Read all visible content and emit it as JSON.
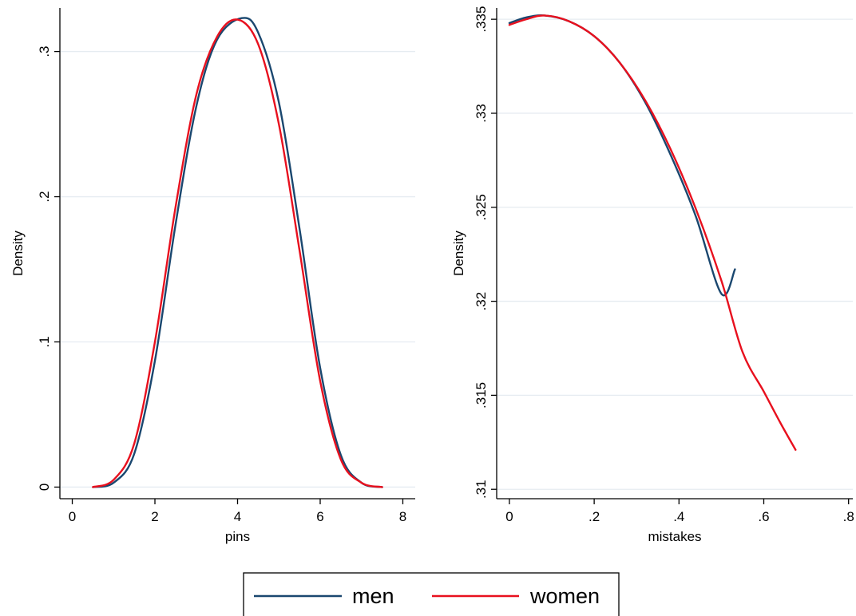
{
  "chart_data": [
    {
      "type": "line",
      "xlabel": "pins",
      "ylabel": "Density",
      "xlim": [
        -0.3,
        8.3
      ],
      "ylim": [
        -0.008,
        0.33
      ],
      "xticks": [
        0,
        2,
        4,
        6,
        8
      ],
      "xtick_labels": [
        "0",
        "2",
        "4",
        "6",
        "8"
      ],
      "yticks": [
        0,
        0.1,
        0.2,
        0.3
      ],
      "ytick_labels": [
        "0",
        ".1",
        ".2",
        ".3"
      ],
      "grid": true,
      "series": [
        {
          "name": "men",
          "x": [
            0.5,
            1.0,
            1.5,
            2.0,
            2.5,
            3.0,
            3.5,
            4.1,
            4.5,
            5.0,
            5.5,
            6.0,
            6.5,
            7.0,
            7.5
          ],
          "y": [
            0.0,
            0.003,
            0.023,
            0.087,
            0.181,
            0.262,
            0.308,
            0.323,
            0.313,
            0.265,
            0.178,
            0.082,
            0.022,
            0.003,
            0.0
          ]
        },
        {
          "name": "women",
          "x": [
            0.5,
            1.0,
            1.5,
            2.0,
            2.5,
            3.0,
            3.5,
            4.0,
            4.5,
            5.0,
            5.5,
            6.0,
            6.5,
            7.0,
            7.5
          ],
          "y": [
            0.0,
            0.005,
            0.03,
            0.1,
            0.193,
            0.27,
            0.31,
            0.322,
            0.305,
            0.25,
            0.163,
            0.073,
            0.019,
            0.003,
            0.0
          ]
        }
      ]
    },
    {
      "type": "line",
      "xlabel": "mistakes",
      "ylabel": "Density",
      "xlim": [
        -0.03,
        0.81
      ],
      "ylim": [
        0.3095,
        0.3356
      ],
      "xticks": [
        0,
        0.2,
        0.4,
        0.6,
        0.8
      ],
      "xtick_labels": [
        "0",
        ".2",
        ".4",
        ".6",
        ".8"
      ],
      "yticks": [
        0.31,
        0.315,
        0.32,
        0.325,
        0.33,
        0.335
      ],
      "ytick_labels": [
        ".31",
        ".315",
        ".32",
        ".325",
        ".33",
        ".335"
      ],
      "grid": true,
      "series": [
        {
          "name": "men",
          "x": [
            0.0,
            0.04,
            0.083,
            0.14,
            0.2,
            0.26,
            0.32,
            0.38,
            0.44,
            0.5,
            0.532
          ],
          "y": [
            0.3348,
            0.3351,
            0.3352,
            0.3349,
            0.3341,
            0.3327,
            0.3306,
            0.3278,
            0.3245,
            0.3204,
            0.3217
          ]
        },
        {
          "name": "women",
          "x": [
            0.0,
            0.04,
            0.083,
            0.14,
            0.2,
            0.26,
            0.32,
            0.38,
            0.44,
            0.5,
            0.55,
            0.6,
            0.64,
            0.675
          ],
          "y": [
            0.3347,
            0.335,
            0.3352,
            0.3349,
            0.3341,
            0.3327,
            0.3307,
            0.3281,
            0.3249,
            0.3211,
            0.3173,
            0.3152,
            0.3135,
            0.3121
          ]
        }
      ]
    }
  ],
  "legend": {
    "placement": "bottom-center",
    "items": [
      {
        "label": "men",
        "color": "#1a476f"
      },
      {
        "label": "women",
        "color": "#e8101e"
      }
    ]
  },
  "colors": {
    "men": "#1a476f",
    "women": "#e8101e",
    "grid": "#e6ecf1"
  }
}
